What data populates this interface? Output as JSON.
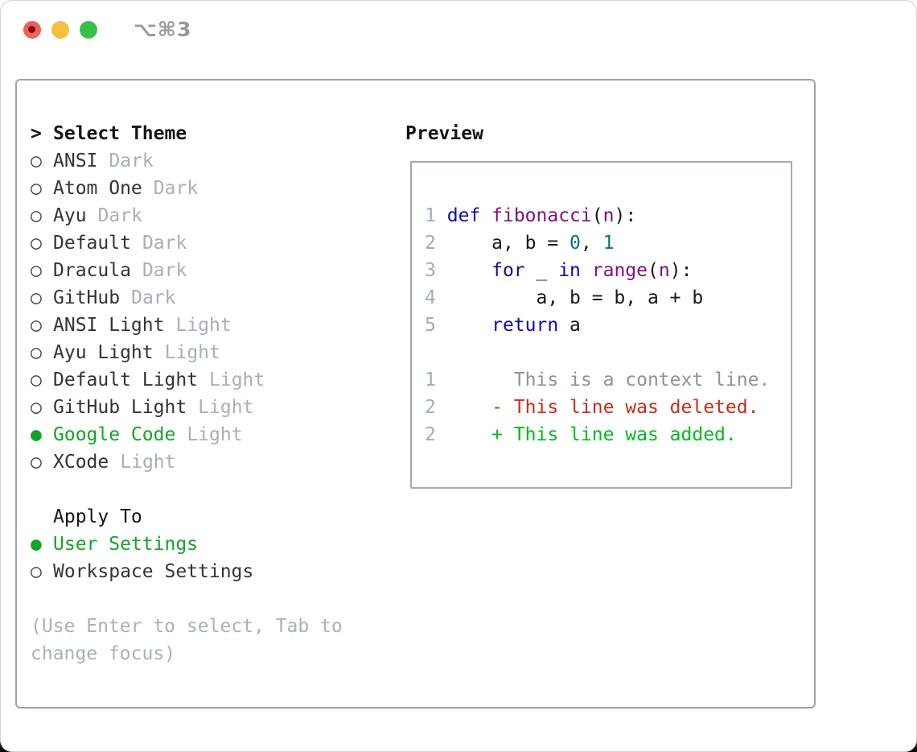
{
  "window": {
    "title": "⌥⌘3",
    "traffic_lights": {
      "close": "#f1615b",
      "minimize": "#f5bf3e",
      "zoom": "#35c148"
    }
  },
  "colors": {
    "selection_green": "#15a32a",
    "added_green": "#02b91f",
    "deleted_red": "#c62c1a",
    "keyword_blue": "#0c0ca8",
    "function_purple": "#7e107e",
    "literal_teal": "#0b7373",
    "muted_gray": "#a7afba",
    "border_gray": "#9ca5b1"
  },
  "theme_panel": {
    "header": {
      "prefix": ">",
      "label": "Select Theme"
    },
    "items": [
      {
        "marker": "○",
        "name": "ANSI",
        "variant": "Dark",
        "selected": false
      },
      {
        "marker": "○",
        "name": "Atom One",
        "variant": "Dark",
        "selected": false
      },
      {
        "marker": "○",
        "name": "Ayu",
        "variant": "Dark",
        "selected": false
      },
      {
        "marker": "○",
        "name": "Default",
        "variant": "Dark",
        "selected": false
      },
      {
        "marker": "○",
        "name": "Dracula",
        "variant": "Dark",
        "selected": false
      },
      {
        "marker": "○",
        "name": "GitHub",
        "variant": "Dark",
        "selected": false
      },
      {
        "marker": "○",
        "name": "ANSI Light",
        "variant": "Light",
        "selected": false
      },
      {
        "marker": "○",
        "name": "Ayu Light",
        "variant": "Light",
        "selected": false
      },
      {
        "marker": "○",
        "name": "Default Light",
        "variant": "Light",
        "selected": false
      },
      {
        "marker": "○",
        "name": "GitHub Light",
        "variant": "Light",
        "selected": false
      },
      {
        "marker": "●",
        "name": "Google Code",
        "variant": "Light",
        "selected": true
      },
      {
        "marker": "○",
        "name": "XCode",
        "variant": "Light",
        "selected": false
      }
    ],
    "apply_to": {
      "label": "Apply To",
      "options": [
        {
          "marker": "●",
          "name": "User Settings",
          "selected": true
        },
        {
          "marker": "○",
          "name": "Workspace Settings",
          "selected": false
        }
      ]
    },
    "help_lines": [
      "(Use Enter to select, Tab to",
      "change focus)"
    ]
  },
  "preview": {
    "label": "Preview",
    "code": [
      {
        "num": "1",
        "tokens": [
          {
            "t": " ",
            "c": "pl"
          },
          {
            "t": "def",
            "c": "kw"
          },
          {
            "t": " ",
            "c": "pl"
          },
          {
            "t": "fibonacci",
            "c": "fn"
          },
          {
            "t": "(",
            "c": "pl"
          },
          {
            "t": "n",
            "c": "fn"
          },
          {
            "t": "):",
            "c": "pl"
          }
        ]
      },
      {
        "num": "2",
        "tokens": [
          {
            "t": "     a, b = ",
            "c": "pl"
          },
          {
            "t": "0",
            "c": "lit"
          },
          {
            "t": ", ",
            "c": "pl"
          },
          {
            "t": "1",
            "c": "lit"
          }
        ]
      },
      {
        "num": "3",
        "tokens": [
          {
            "t": "     ",
            "c": "pl"
          },
          {
            "t": "for",
            "c": "kw"
          },
          {
            "t": " _ ",
            "c": "pl"
          },
          {
            "t": "in",
            "c": "kw"
          },
          {
            "t": " ",
            "c": "pl"
          },
          {
            "t": "range",
            "c": "fn"
          },
          {
            "t": "(",
            "c": "pl"
          },
          {
            "t": "n",
            "c": "fn"
          },
          {
            "t": "):",
            "c": "pl"
          }
        ]
      },
      {
        "num": "4",
        "tokens": [
          {
            "t": "         a, b = b, a + b",
            "c": "pl"
          }
        ]
      },
      {
        "num": "5",
        "tokens": [
          {
            "t": "     ",
            "c": "pl"
          },
          {
            "t": "return",
            "c": "kw"
          },
          {
            "t": " a",
            "c": "pl"
          }
        ]
      }
    ],
    "diff": [
      {
        "num": "1",
        "text": "       This is a context line.",
        "kind": "ctx"
      },
      {
        "num": "2",
        "text": "     - This line was deleted.",
        "kind": "del"
      },
      {
        "num": "2",
        "text": "     + This line was added.",
        "kind": "add"
      }
    ]
  }
}
